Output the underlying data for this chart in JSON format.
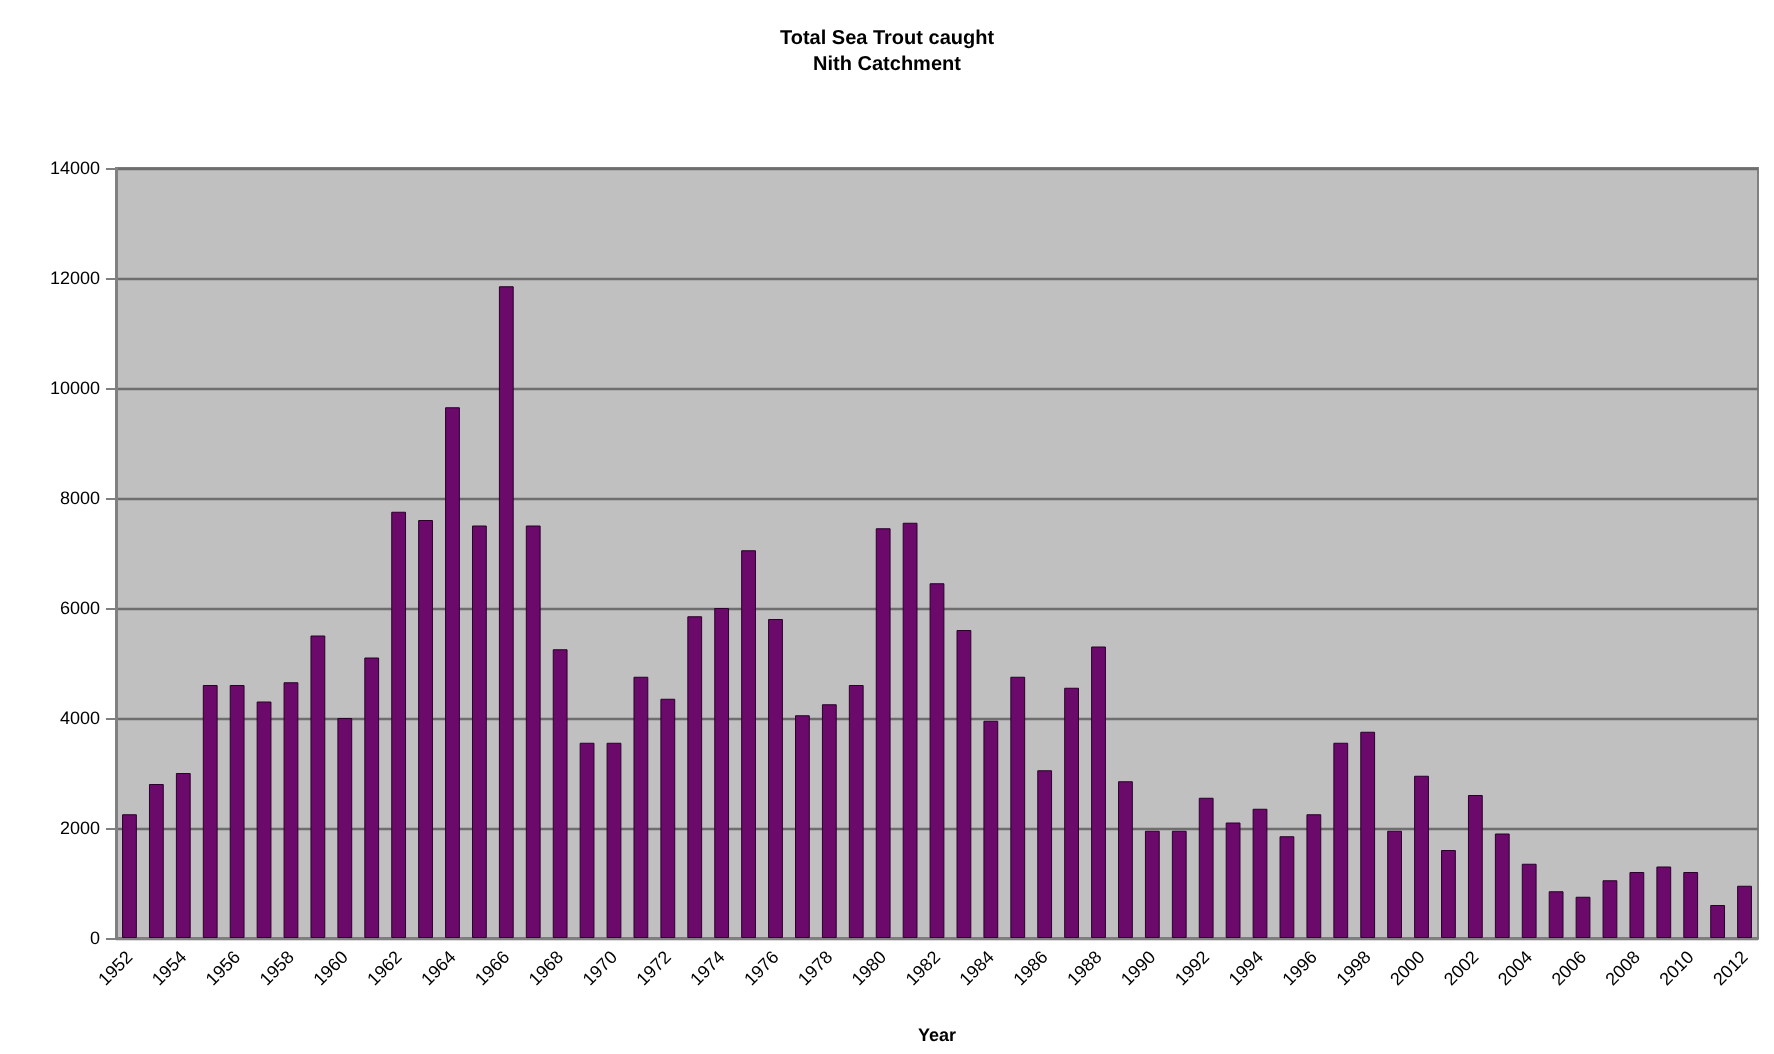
{
  "chart_data": {
    "type": "bar",
    "title": "Total Sea Trout caught\nNith Catchment",
    "xlabel": "Year",
    "categories": [
      "1952",
      null,
      "1954",
      null,
      "1956",
      null,
      "1958",
      null,
      "1960",
      null,
      "1962",
      null,
      "1964",
      null,
      "1966",
      null,
      "1968",
      null,
      "1970",
      null,
      "1972",
      null,
      "1974",
      null,
      "1976",
      null,
      "1978",
      null,
      "1980",
      null,
      "1982",
      null,
      "1984",
      null,
      "1986",
      null,
      "1988",
      null,
      "1990",
      null,
      "1992",
      null,
      "1994",
      null,
      "1996",
      null,
      "1998",
      null,
      "2000",
      null,
      "2002",
      null,
      "2004",
      null,
      "2006",
      null,
      "2008",
      null,
      "2010",
      null,
      "2012"
    ],
    "values": [
      2250,
      2800,
      3000,
      4600,
      4600,
      4300,
      4650,
      5500,
      4000,
      5100,
      7750,
      7600,
      9650,
      7500,
      11850,
      7500,
      5250,
      3550,
      3550,
      4750,
      4350,
      5850,
      6000,
      7050,
      5800,
      4050,
      4250,
      4600,
      7450,
      7550,
      6450,
      5600,
      3950,
      4750,
      3050,
      4550,
      5300,
      2850,
      1950,
      1950,
      2550,
      2100,
      2350,
      1850,
      2250,
      3550,
      3750,
      1950,
      2950,
      1600,
      2600,
      1900,
      1350,
      850,
      750,
      1050,
      1200,
      1300,
      1200,
      600,
      950
    ],
    "color": "#6b0a6b",
    "ylim": [
      0,
      14000
    ],
    "yticks": [
      0,
      2000,
      4000,
      6000,
      8000,
      10000,
      12000,
      14000
    ],
    "grid": "y"
  }
}
